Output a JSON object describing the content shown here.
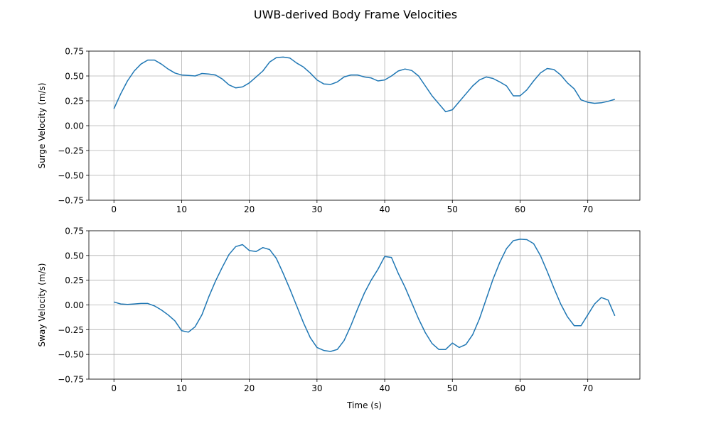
{
  "title": "UWB-derived Body Frame Velocities",
  "colors": {
    "line": "#1f77b4",
    "grid": "#b0b0b0",
    "frame": "#000000"
  },
  "chart_data": [
    {
      "type": "line",
      "title": "",
      "xlabel": "",
      "ylabel": "Surge Velocity (m/s)",
      "xlim": [
        -3.7,
        77.7
      ],
      "ylim": [
        -0.75,
        0.75
      ],
      "xticks": [
        0,
        10,
        20,
        30,
        40,
        50,
        60,
        70
      ],
      "yticks": [
        -0.75,
        -0.5,
        -0.25,
        0.0,
        0.25,
        0.5,
        0.75
      ],
      "ytick_labels": [
        "−0.75",
        "−0.50",
        "−0.25",
        "0.00",
        "0.25",
        "0.50",
        "0.75"
      ],
      "grid": true,
      "series": [
        {
          "x": [
            0,
            1,
            2,
            3,
            4,
            5,
            6,
            7,
            8,
            9,
            10,
            11,
            12,
            13,
            14,
            15,
            16,
            17,
            18,
            19,
            20,
            21,
            22,
            23,
            24,
            25,
            26,
            27,
            28,
            29,
            30,
            31,
            32,
            33,
            34,
            35,
            36,
            37,
            38,
            39,
            40,
            41,
            42,
            43,
            44,
            45,
            46,
            47,
            48,
            49,
            50,
            51,
            52,
            53,
            54,
            55,
            56,
            57,
            58,
            59,
            60,
            61,
            62,
            63,
            64,
            65,
            66,
            67,
            68,
            69,
            70,
            71,
            72,
            73,
            74
          ],
          "y": [
            0.17,
            0.32,
            0.45,
            0.55,
            0.62,
            0.66,
            0.66,
            0.62,
            0.57,
            0.53,
            0.51,
            0.505,
            0.5,
            0.525,
            0.52,
            0.51,
            0.47,
            0.41,
            0.38,
            0.39,
            0.43,
            0.49,
            0.55,
            0.64,
            0.685,
            0.69,
            0.68,
            0.63,
            0.59,
            0.53,
            0.46,
            0.42,
            0.415,
            0.44,
            0.49,
            0.51,
            0.51,
            0.49,
            0.48,
            0.45,
            0.46,
            0.5,
            0.55,
            0.57,
            0.555,
            0.5,
            0.4,
            0.3,
            0.22,
            0.14,
            0.16,
            0.24,
            0.32,
            0.4,
            0.46,
            0.49,
            0.475,
            0.44,
            0.4,
            0.3,
            0.3,
            0.36,
            0.45,
            0.53,
            0.575,
            0.565,
            0.51,
            0.43,
            0.37,
            0.26,
            0.235,
            0.225,
            0.23,
            0.245,
            0.265
          ]
        }
      ]
    },
    {
      "type": "line",
      "title": "",
      "xlabel": "Time (s)",
      "ylabel": "Sway Velocity (m/s)",
      "xlim": [
        -3.7,
        77.7
      ],
      "ylim": [
        -0.75,
        0.75
      ],
      "xticks": [
        0,
        10,
        20,
        30,
        40,
        50,
        60,
        70
      ],
      "yticks": [
        -0.75,
        -0.5,
        -0.25,
        0.0,
        0.25,
        0.5,
        0.75
      ],
      "ytick_labels": [
        "−0.75",
        "−0.50",
        "−0.25",
        "0.00",
        "0.25",
        "0.50",
        "0.75"
      ],
      "grid": true,
      "series": [
        {
          "x": [
            0,
            1,
            2,
            3,
            4,
            5,
            6,
            7,
            8,
            9,
            10,
            11,
            12,
            13,
            14,
            15,
            16,
            17,
            18,
            19,
            20,
            21,
            22,
            23,
            24,
            25,
            26,
            27,
            28,
            29,
            30,
            31,
            32,
            33,
            34,
            35,
            36,
            37,
            38,
            39,
            40,
            41,
            42,
            43,
            44,
            45,
            46,
            47,
            48,
            49,
            50,
            51,
            52,
            53,
            54,
            55,
            56,
            57,
            58,
            59,
            60,
            61,
            62,
            63,
            64,
            65,
            66,
            67,
            68,
            69,
            70,
            71,
            72,
            73,
            74
          ],
          "y": [
            0.03,
            0.01,
            0.005,
            0.01,
            0.015,
            0.015,
            -0.01,
            -0.05,
            -0.1,
            -0.16,
            -0.26,
            -0.275,
            -0.22,
            -0.1,
            0.08,
            0.24,
            0.38,
            0.51,
            0.59,
            0.61,
            0.55,
            0.54,
            0.58,
            0.56,
            0.47,
            0.32,
            0.16,
            -0.01,
            -0.18,
            -0.33,
            -0.43,
            -0.46,
            -0.47,
            -0.45,
            -0.36,
            -0.21,
            -0.04,
            0.12,
            0.25,
            0.36,
            0.49,
            0.48,
            0.32,
            0.18,
            0.02,
            -0.14,
            -0.28,
            -0.39,
            -0.45,
            -0.45,
            -0.385,
            -0.43,
            -0.4,
            -0.3,
            -0.14,
            0.06,
            0.26,
            0.43,
            0.57,
            0.65,
            0.665,
            0.66,
            0.62,
            0.5,
            0.34,
            0.17,
            0.01,
            -0.12,
            -0.21,
            -0.21,
            -0.1,
            0.01,
            0.075,
            0.05,
            -0.11
          ]
        }
      ]
    }
  ]
}
